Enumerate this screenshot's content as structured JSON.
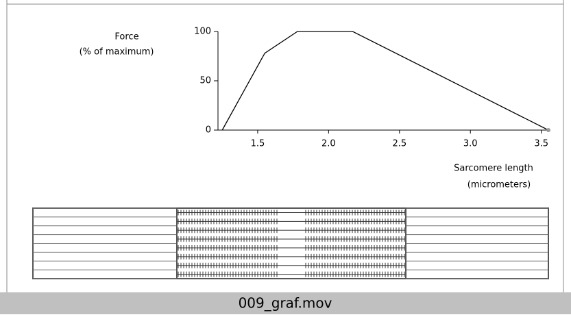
{
  "chart_data": {
    "type": "line",
    "y_label": [
      "Force",
      "(% of maximum)"
    ],
    "x_label": [
      "Sarcomere length",
      "(micrometers)"
    ],
    "x": [
      1.25,
      1.55,
      1.78,
      2.17,
      3.55
    ],
    "values": [
      0,
      78,
      100,
      100,
      0
    ],
    "color": "#000000",
    "xlim": [
      1.22,
      3.55
    ],
    "ylim": [
      0,
      100
    ],
    "xticks": [
      1.5,
      {
        "value": 2,
        "label": "2.0"
      },
      2.5,
      {
        "value": 3,
        "label": "3.0"
      },
      3.5
    ],
    "yticks": [
      0,
      50,
      100
    ]
  },
  "caption": "009_graf.mov"
}
